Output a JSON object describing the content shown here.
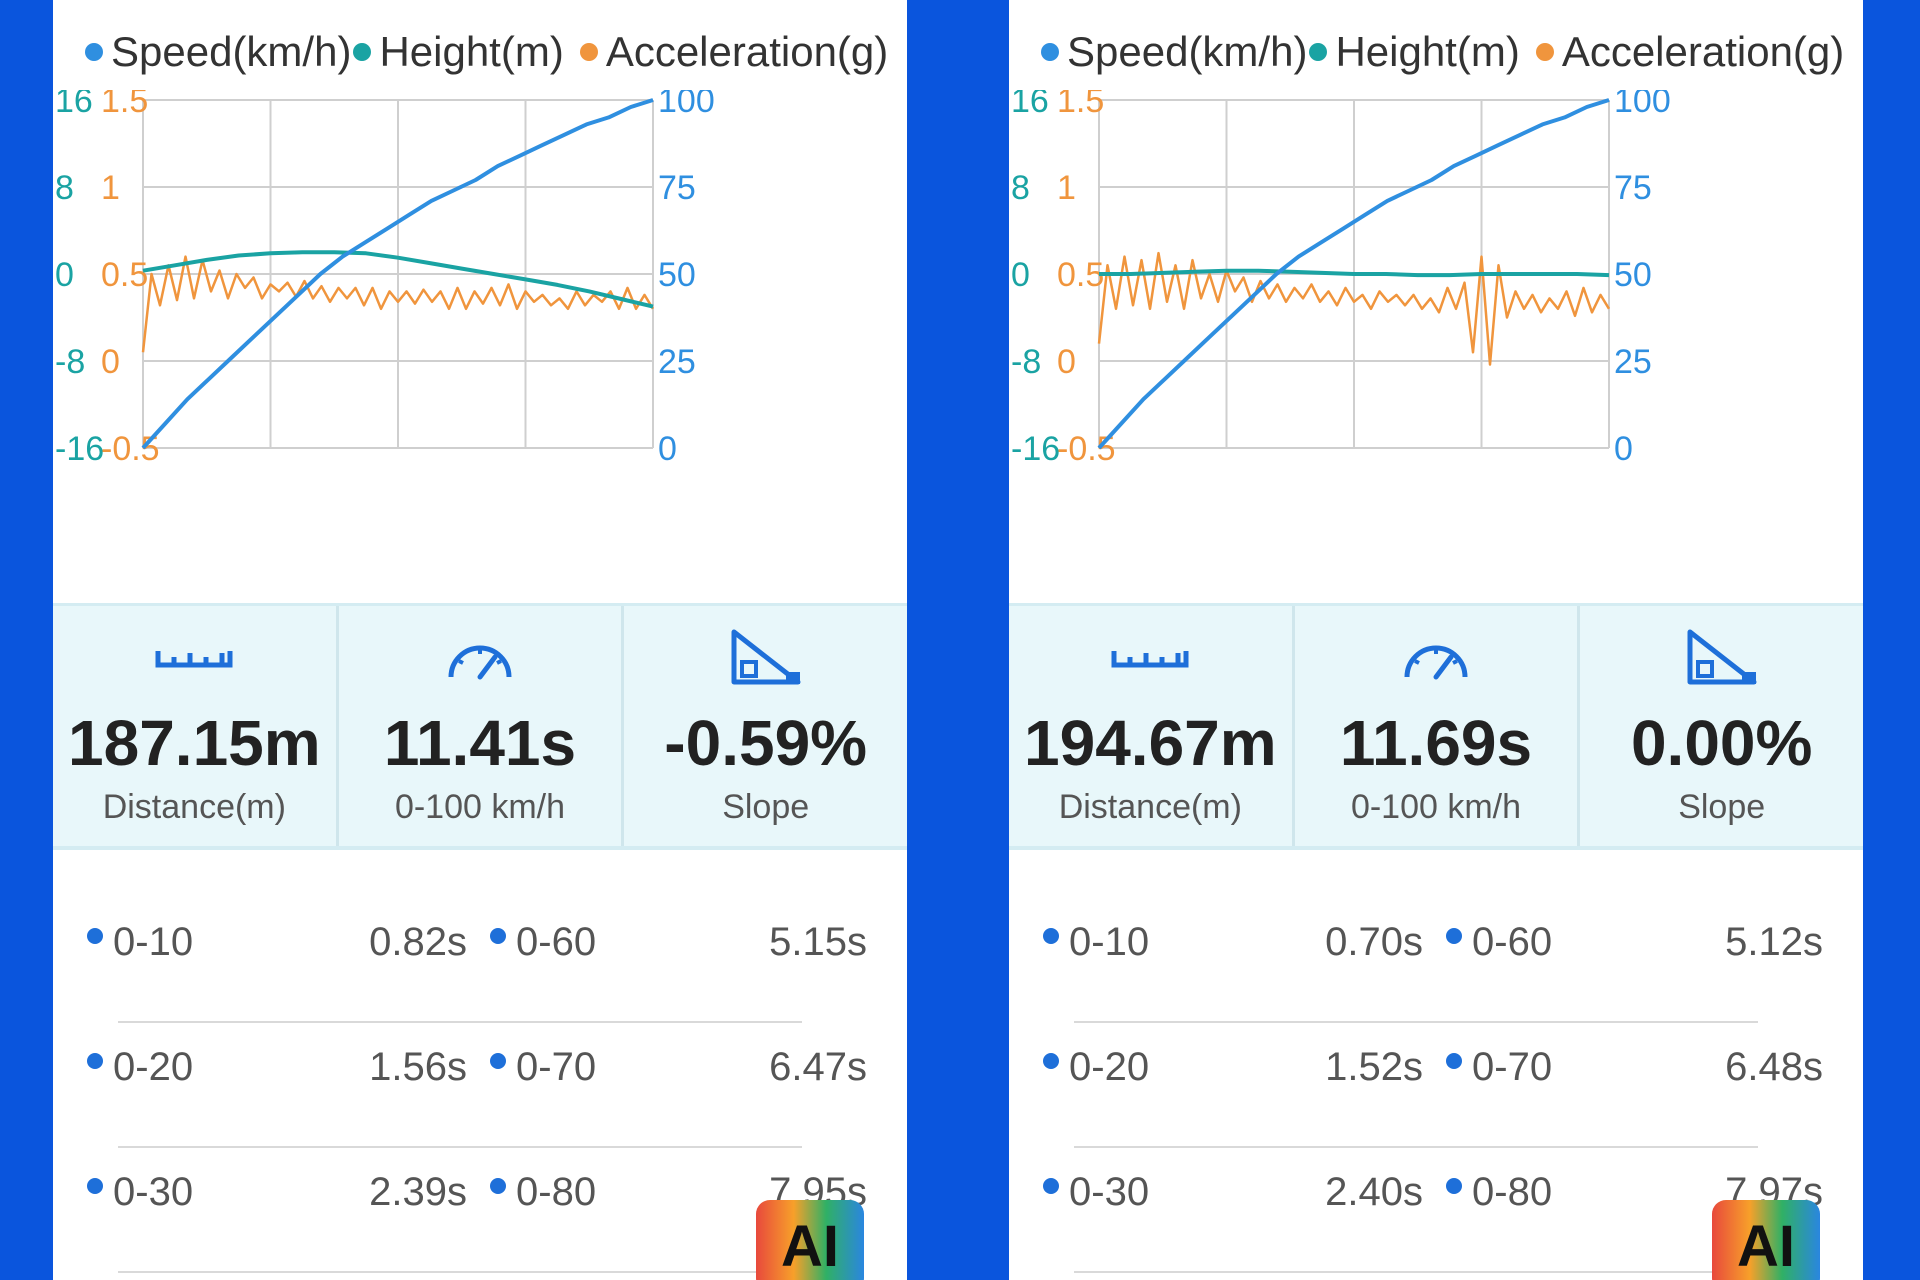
{
  "legend": [
    {
      "label": "Speed(km/h)",
      "color": "#2f8fe0"
    },
    {
      "label": "Height(m)",
      "color": "#1aa3a3"
    },
    {
      "label": "Acceleration(g)",
      "color": "#f0953d"
    }
  ],
  "colors": {
    "speed": "#2f8fe0",
    "height": "#1aa3a3",
    "acceleration": "#f0953d",
    "background": "#0a55dd",
    "stats_bg": "#e8f7fa"
  },
  "icons": {
    "distance": "ruler-icon",
    "time": "speedometer-icon",
    "slope": "set-square-icon"
  },
  "ai_badge": "AI",
  "chart_data": [
    {
      "type": "line",
      "legend_placement": "top",
      "grid": true,
      "x_divisions": 4,
      "axes": {
        "left_outer": {
          "series": "Height(m)",
          "ticks": [
            "16",
            "8",
            "0",
            "-8",
            "-16"
          ],
          "range": [
            -16,
            16
          ]
        },
        "left_inner": {
          "series": "Acceleration(g)",
          "ticks": [
            "1.5",
            "1",
            "0.5",
            "0",
            "-0.5"
          ],
          "range": [
            -0.5,
            1.5
          ]
        },
        "right": {
          "series": "Speed(km/h)",
          "ticks": [
            "100",
            "75",
            "50",
            "25",
            "0"
          ],
          "range": [
            0,
            100
          ]
        }
      },
      "series": [
        {
          "name": "Speed(km/h)",
          "y": [
            0,
            7,
            14,
            20,
            26,
            32,
            38,
            44,
            50,
            55,
            59,
            63,
            67,
            71,
            74,
            77,
            81,
            84,
            87,
            90,
            93,
            95,
            98,
            100
          ]
        },
        {
          "name": "Height(m)",
          "y": [
            0.3,
            0.8,
            1.3,
            1.7,
            1.9,
            2.0,
            2.0,
            1.9,
            1.5,
            1.0,
            0.5,
            0.0,
            -0.5,
            -1.0,
            -1.6,
            -2.3,
            -3.0
          ]
        },
        {
          "name": "Acceleration(g)",
          "y": [
            0.05,
            0.5,
            0.32,
            0.55,
            0.35,
            0.6,
            0.36,
            0.58,
            0.4,
            0.52,
            0.36,
            0.5,
            0.42,
            0.48,
            0.36,
            0.44,
            0.4,
            0.45,
            0.37,
            0.46,
            0.36,
            0.43,
            0.34,
            0.42,
            0.36,
            0.42,
            0.32,
            0.42,
            0.3,
            0.4,
            0.34,
            0.4,
            0.33,
            0.41,
            0.34,
            0.4,
            0.3,
            0.42,
            0.3,
            0.4,
            0.33,
            0.42,
            0.32,
            0.44,
            0.3,
            0.4,
            0.34,
            0.38,
            0.32,
            0.36,
            0.3,
            0.4,
            0.32,
            0.38,
            0.34,
            0.4,
            0.3,
            0.42,
            0.3,
            0.38,
            0.3
          ]
        }
      ]
    },
    {
      "type": "line",
      "legend_placement": "top",
      "grid": true,
      "x_divisions": 4,
      "axes": {
        "left_outer": {
          "series": "Height(m)",
          "ticks": [
            "16",
            "8",
            "0",
            "-8",
            "-16"
          ],
          "range": [
            -16,
            16
          ]
        },
        "left_inner": {
          "series": "Acceleration(g)",
          "ticks": [
            "1.5",
            "1",
            "0.5",
            "0",
            "-0.5"
          ],
          "range": [
            -0.5,
            1.5
          ]
        },
        "right": {
          "series": "Speed(km/h)",
          "ticks": [
            "100",
            "75",
            "50",
            "25",
            "0"
          ],
          "range": [
            0,
            100
          ]
        }
      },
      "series": [
        {
          "name": "Speed(km/h)",
          "y": [
            0,
            7,
            14,
            20,
            26,
            32,
            38,
            44,
            50,
            55,
            59,
            63,
            67,
            71,
            74,
            77,
            81,
            84,
            87,
            90,
            93,
            95,
            98,
            100
          ]
        },
        {
          "name": "Height(m)",
          "y": [
            0.0,
            0.0,
            0.1,
            0.2,
            0.3,
            0.3,
            0.2,
            0.1,
            0.0,
            0.0,
            -0.1,
            -0.1,
            0.0,
            0.0,
            0.0,
            0.0,
            -0.1
          ]
        },
        {
          "name": "Acceleration(g)",
          "y": [
            0.1,
            0.55,
            0.3,
            0.6,
            0.32,
            0.58,
            0.3,
            0.62,
            0.34,
            0.55,
            0.3,
            0.58,
            0.36,
            0.5,
            0.34,
            0.52,
            0.4,
            0.48,
            0.34,
            0.46,
            0.36,
            0.44,
            0.34,
            0.42,
            0.36,
            0.44,
            0.34,
            0.4,
            0.32,
            0.42,
            0.34,
            0.38,
            0.3,
            0.4,
            0.34,
            0.38,
            0.32,
            0.38,
            0.3,
            0.36,
            0.28,
            0.42,
            0.3,
            0.45,
            0.05,
            0.6,
            -0.02,
            0.55,
            0.25,
            0.4,
            0.3,
            0.38,
            0.28,
            0.36,
            0.3,
            0.4,
            0.26,
            0.42,
            0.28,
            0.38,
            0.3
          ]
        }
      ]
    }
  ],
  "panels": [
    {
      "stats": [
        {
          "value": "187.15m",
          "label": "Distance(m)"
        },
        {
          "value": "11.41s",
          "label": "0-100 km/h"
        },
        {
          "value": "-0.59%",
          "label": "Slope"
        }
      ],
      "splits": [
        {
          "left_label": "0-10",
          "left_time": "0.82s",
          "right_label": "0-60",
          "right_time": "5.15s"
        },
        {
          "left_label": "0-20",
          "left_time": "1.56s",
          "right_label": "0-70",
          "right_time": "6.47s"
        },
        {
          "left_label": "0-30",
          "left_time": "2.39s",
          "right_label": "0-80",
          "right_time": "7.95s"
        }
      ]
    },
    {
      "stats": [
        {
          "value": "194.67m",
          "label": "Distance(m)"
        },
        {
          "value": "11.69s",
          "label": "0-100 km/h"
        },
        {
          "value": "0.00%",
          "label": "Slope"
        }
      ],
      "splits": [
        {
          "left_label": "0-10",
          "left_time": "0.70s",
          "right_label": "0-60",
          "right_time": "5.12s"
        },
        {
          "left_label": "0-20",
          "left_time": "1.52s",
          "right_label": "0-70",
          "right_time": "6.48s"
        },
        {
          "left_label": "0-30",
          "left_time": "2.40s",
          "right_label": "0-80",
          "right_time": "7.97s"
        }
      ]
    }
  ]
}
